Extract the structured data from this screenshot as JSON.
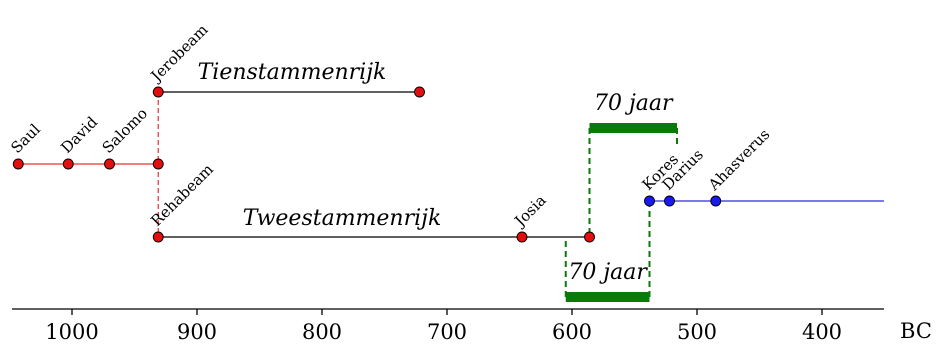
{
  "axis": {
    "unit_label": "BC",
    "ticks": [
      1000,
      900,
      800,
      700,
      600,
      500,
      400
    ],
    "range": [
      1050,
      340
    ]
  },
  "colors": {
    "united": "#e8302a",
    "marker_red": "#e01010",
    "persian_line": "#2a2ae0",
    "marker_blue": "#1a1af0",
    "exile": "#0a7a0a",
    "ink": "#000000"
  },
  "points": [
    {
      "name": "Saul",
      "year": 1043,
      "track": "united",
      "color": "red",
      "label": true
    },
    {
      "name": "David",
      "year": 1003,
      "track": "united",
      "color": "red",
      "label": true
    },
    {
      "name": "Salomo",
      "year": 970,
      "track": "united",
      "color": "red",
      "label": true
    },
    {
      "name": "",
      "year": 931,
      "track": "united",
      "color": "red",
      "label": false
    },
    {
      "name": "Jerobeam",
      "year": 931,
      "track": "north",
      "color": "red",
      "label": true
    },
    {
      "name": "",
      "year": 722,
      "track": "north",
      "color": "red",
      "label": false
    },
    {
      "name": "Rehabeam",
      "year": 931,
      "track": "south",
      "color": "red",
      "label": true
    },
    {
      "name": "Josia",
      "year": 640,
      "track": "south",
      "color": "red",
      "label": true
    },
    {
      "name": "",
      "year": 586,
      "track": "south",
      "color": "red",
      "label": false
    },
    {
      "name": "Kores",
      "year": 538,
      "track": "persian",
      "color": "blue",
      "label": true
    },
    {
      "name": "Darius",
      "year": 522,
      "track": "persian",
      "color": "blue",
      "label": true
    },
    {
      "name": "Ahasverus",
      "year": 485,
      "track": "persian",
      "color": "blue",
      "label": true
    }
  ],
  "segments": [
    {
      "track": "united",
      "from": 1043,
      "to": 931,
      "color": "united"
    },
    {
      "track": "north",
      "from": 931,
      "to": 722,
      "color": "ink"
    },
    {
      "track": "south",
      "from": 931,
      "to": 586,
      "color": "ink"
    },
    {
      "track": "persian",
      "from": 538,
      "to": 340,
      "color": "persian_line"
    }
  ],
  "kingdoms": {
    "north": "Tienstammenrijk",
    "south": "Tweestammenrijk"
  },
  "exiles": [
    {
      "label": "70 jaar",
      "from": 586,
      "to": 516,
      "position": "top"
    },
    {
      "label": "70 jaar",
      "from": 605,
      "to": 538,
      "position": "bottom"
    }
  ]
}
